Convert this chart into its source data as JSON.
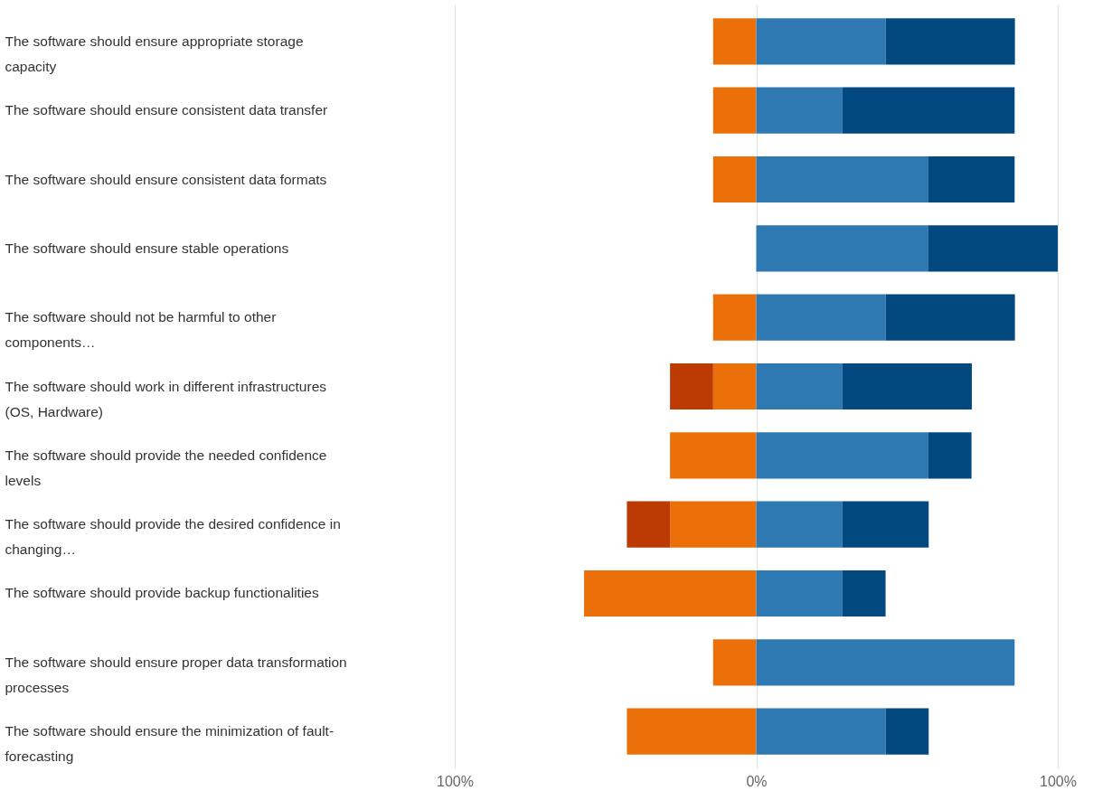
{
  "chart_data": {
    "type": "bar",
    "orientation": "horizontal",
    "stacked": true,
    "categories": [
      "The software should ensure appropriate storage capacity",
      "The software should ensure consistent data transfer",
      "The software should ensure consistent data formats",
      "The software should ensure stable operations",
      "The software should not be harmful to other components…",
      "The software should work in different infrastructures (OS, Hardware)",
      "The software should provide the needed confidence levels",
      "The software should provide the desired confidence in changing…",
      "The software should provide backup functionalities",
      "The software should ensure proper data transformation processes",
      "The software should ensure the minimization of fault-forecasting"
    ],
    "series": [
      {
        "color": "#ec7009",
        "values": [
          -14.3,
          -14.3,
          -14.3,
          null,
          -14.3,
          -14.3,
          -28.6,
          -28.6,
          -57.1,
          -14.3,
          -42.9
        ]
      },
      {
        "color": "#bb3b02",
        "values": [
          null,
          null,
          null,
          null,
          null,
          -14.3,
          null,
          -14.3,
          null,
          null,
          null
        ]
      },
      {
        "color": "#2e79b1",
        "values": [
          42.9,
          28.6,
          57.1,
          57.1,
          42.9,
          28.6,
          57.1,
          28.6,
          28.6,
          85.7,
          42.9
        ]
      },
      {
        "color": "#02497f",
        "values": [
          42.9,
          57.1,
          28.6,
          42.9,
          42.9,
          42.9,
          14.3,
          28.6,
          14.3,
          null,
          14.3
        ]
      }
    ],
    "xlim": [
      -100,
      100
    ],
    "xticks": [
      {
        "value": -100,
        "label": "100%"
      },
      {
        "value": 0,
        "label": "0%"
      },
      {
        "value": 100,
        "label": "100%"
      }
    ],
    "grid": "x"
  }
}
